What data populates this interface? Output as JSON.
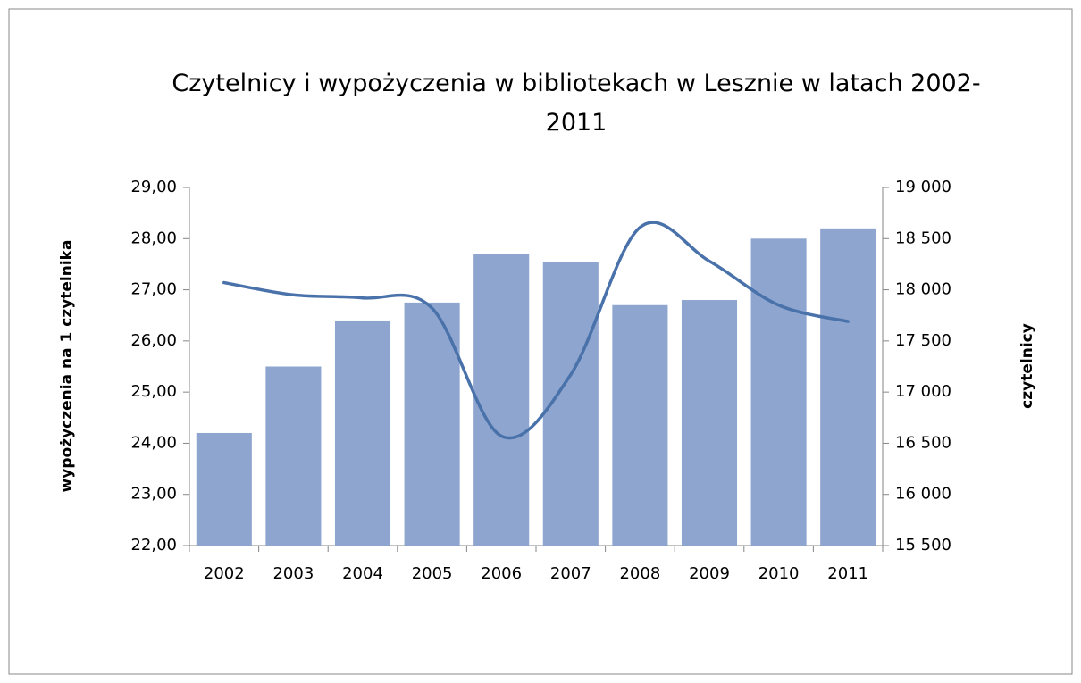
{
  "chart_data": {
    "type": "bar+line",
    "title": "Czytelnicy i wypożyczenia w bibliotekach w Lesznie w latach 2002-2011",
    "ylabel": "wypożyczenia na 1 czytelnika",
    "y2label": "czytelnicy",
    "categories": [
      "2002",
      "2003",
      "2004",
      "2005",
      "2006",
      "2007",
      "2008",
      "2009",
      "2010",
      "2011"
    ],
    "series": [
      {
        "type": "bar",
        "color": "#8ea5cf",
        "values": [
          24.2,
          25.5,
          26.4,
          26.75,
          27.7,
          27.55,
          26.7,
          26.8,
          28.0,
          28.2
        ]
      },
      {
        "type": "line",
        "axis": "y2",
        "color": "#4a72aa",
        "smooth": true,
        "values": [
          18070,
          17950,
          17920,
          17820,
          16570,
          17170,
          18610,
          18280,
          17850,
          17690
        ]
      }
    ],
    "ylim": [
      22,
      29
    ],
    "yticks": [
      {
        "value": 22,
        "label": "22,00"
      },
      {
        "value": 23,
        "label": "23,00"
      },
      {
        "value": 24,
        "label": "24,00"
      },
      {
        "value": 25,
        "label": "25,00"
      },
      {
        "value": 26,
        "label": "26,00"
      },
      {
        "value": 27,
        "label": "27,00"
      },
      {
        "value": 28,
        "label": "28,00"
      },
      {
        "value": 29,
        "label": "29,00"
      }
    ],
    "y2lim": [
      15500,
      19000
    ],
    "y2ticks": [
      {
        "value": 15500,
        "label": "15 500"
      },
      {
        "value": 16000,
        "label": "16 000"
      },
      {
        "value": 16500,
        "label": "16 500"
      },
      {
        "value": 17000,
        "label": "17 000"
      },
      {
        "value": 17500,
        "label": "17 500"
      },
      {
        "value": 18000,
        "label": "18 000"
      },
      {
        "value": 18500,
        "label": "18 500"
      },
      {
        "value": 19000,
        "label": "19 000"
      }
    ],
    "grid": false
  }
}
